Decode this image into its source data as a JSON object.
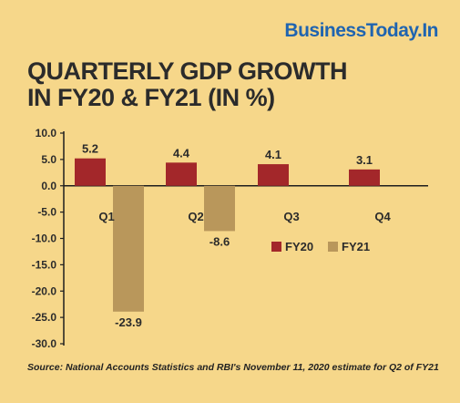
{
  "brand": "BusinessToday.In",
  "title_lines": [
    "QUARTERLY GDP GROWTH",
    "IN FY20 & FY21 (IN %)"
  ],
  "source": "Source: National Accounts Statistics and RBI's November 11, 2020 estimate for Q2 of FY21",
  "colors": {
    "background": "#f6d78a",
    "fy20": "#a3272a",
    "fy21": "#b9975b",
    "axis": "#1e1e1e",
    "brand": "#1f64b0"
  },
  "chart_data": {
    "type": "bar",
    "title": "QUARTERLY GDP GROWTH IN FY20 & FY21 (IN %)",
    "categories": [
      "Q1",
      "Q2",
      "Q3",
      "Q4"
    ],
    "series": [
      {
        "name": "FY20",
        "values": [
          5.2,
          4.4,
          4.1,
          3.1
        ],
        "labels": [
          "5.2",
          "4.4",
          "4.1",
          "3.1"
        ]
      },
      {
        "name": "FY21",
        "values": [
          -23.9,
          -8.6,
          null,
          null
        ],
        "labels": [
          "-23.9",
          "-8.6",
          null,
          null
        ]
      }
    ],
    "ylim": [
      -30,
      10
    ],
    "yticks": [
      10,
      5,
      0,
      -5,
      -10,
      -15,
      -20,
      -25,
      -30
    ],
    "ytick_labels": [
      "10.0",
      "5.0",
      "0.0",
      "-5.0",
      "-10.0",
      "-15.0",
      "-20.0",
      "-25.0",
      "-30.0"
    ],
    "xlabel": "",
    "ylabel": "",
    "legend": [
      "FY20",
      "FY21"
    ],
    "legend_position": "right",
    "grid": false
  }
}
